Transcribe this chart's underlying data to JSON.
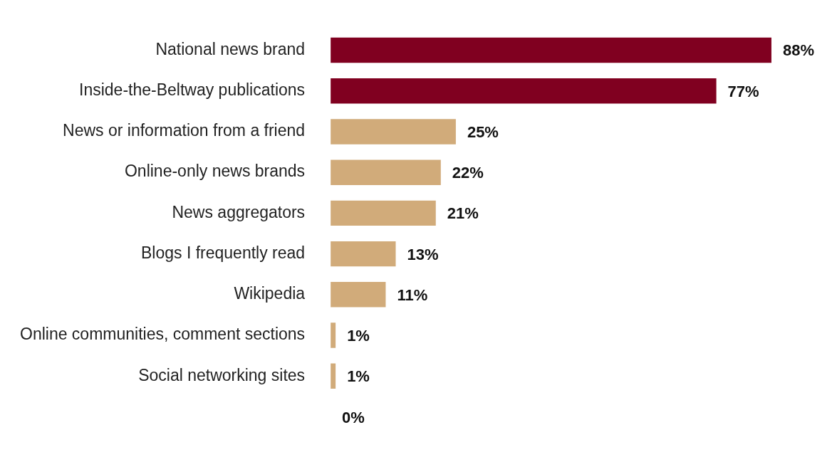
{
  "chart_data": {
    "type": "bar",
    "orientation": "horizontal",
    "categories": [
      "National news brand",
      "Inside-the-Beltway publications",
      "News or information from a friend",
      "Online-only news brands",
      "News aggregators",
      "Blogs I frequently read",
      "Wikipedia",
      "Online communities, comment sections",
      "Social networking sites",
      null
    ],
    "values": [
      88,
      77,
      25,
      22,
      21,
      13,
      11,
      1,
      1,
      0
    ],
    "colors": [
      "#800020",
      "#800020",
      "#d1ab7a",
      "#d1ab7a",
      "#d1ab7a",
      "#d1ab7a",
      "#d1ab7a",
      "#d1ab7a",
      "#d1ab7a",
      "#d1ab7a"
    ],
    "value_labels": [
      "88%",
      "77%",
      "25%",
      "22%",
      "21%",
      "13%",
      "11%",
      "1%",
      "1%",
      "0%"
    ],
    "tick_labels": "y"
  }
}
